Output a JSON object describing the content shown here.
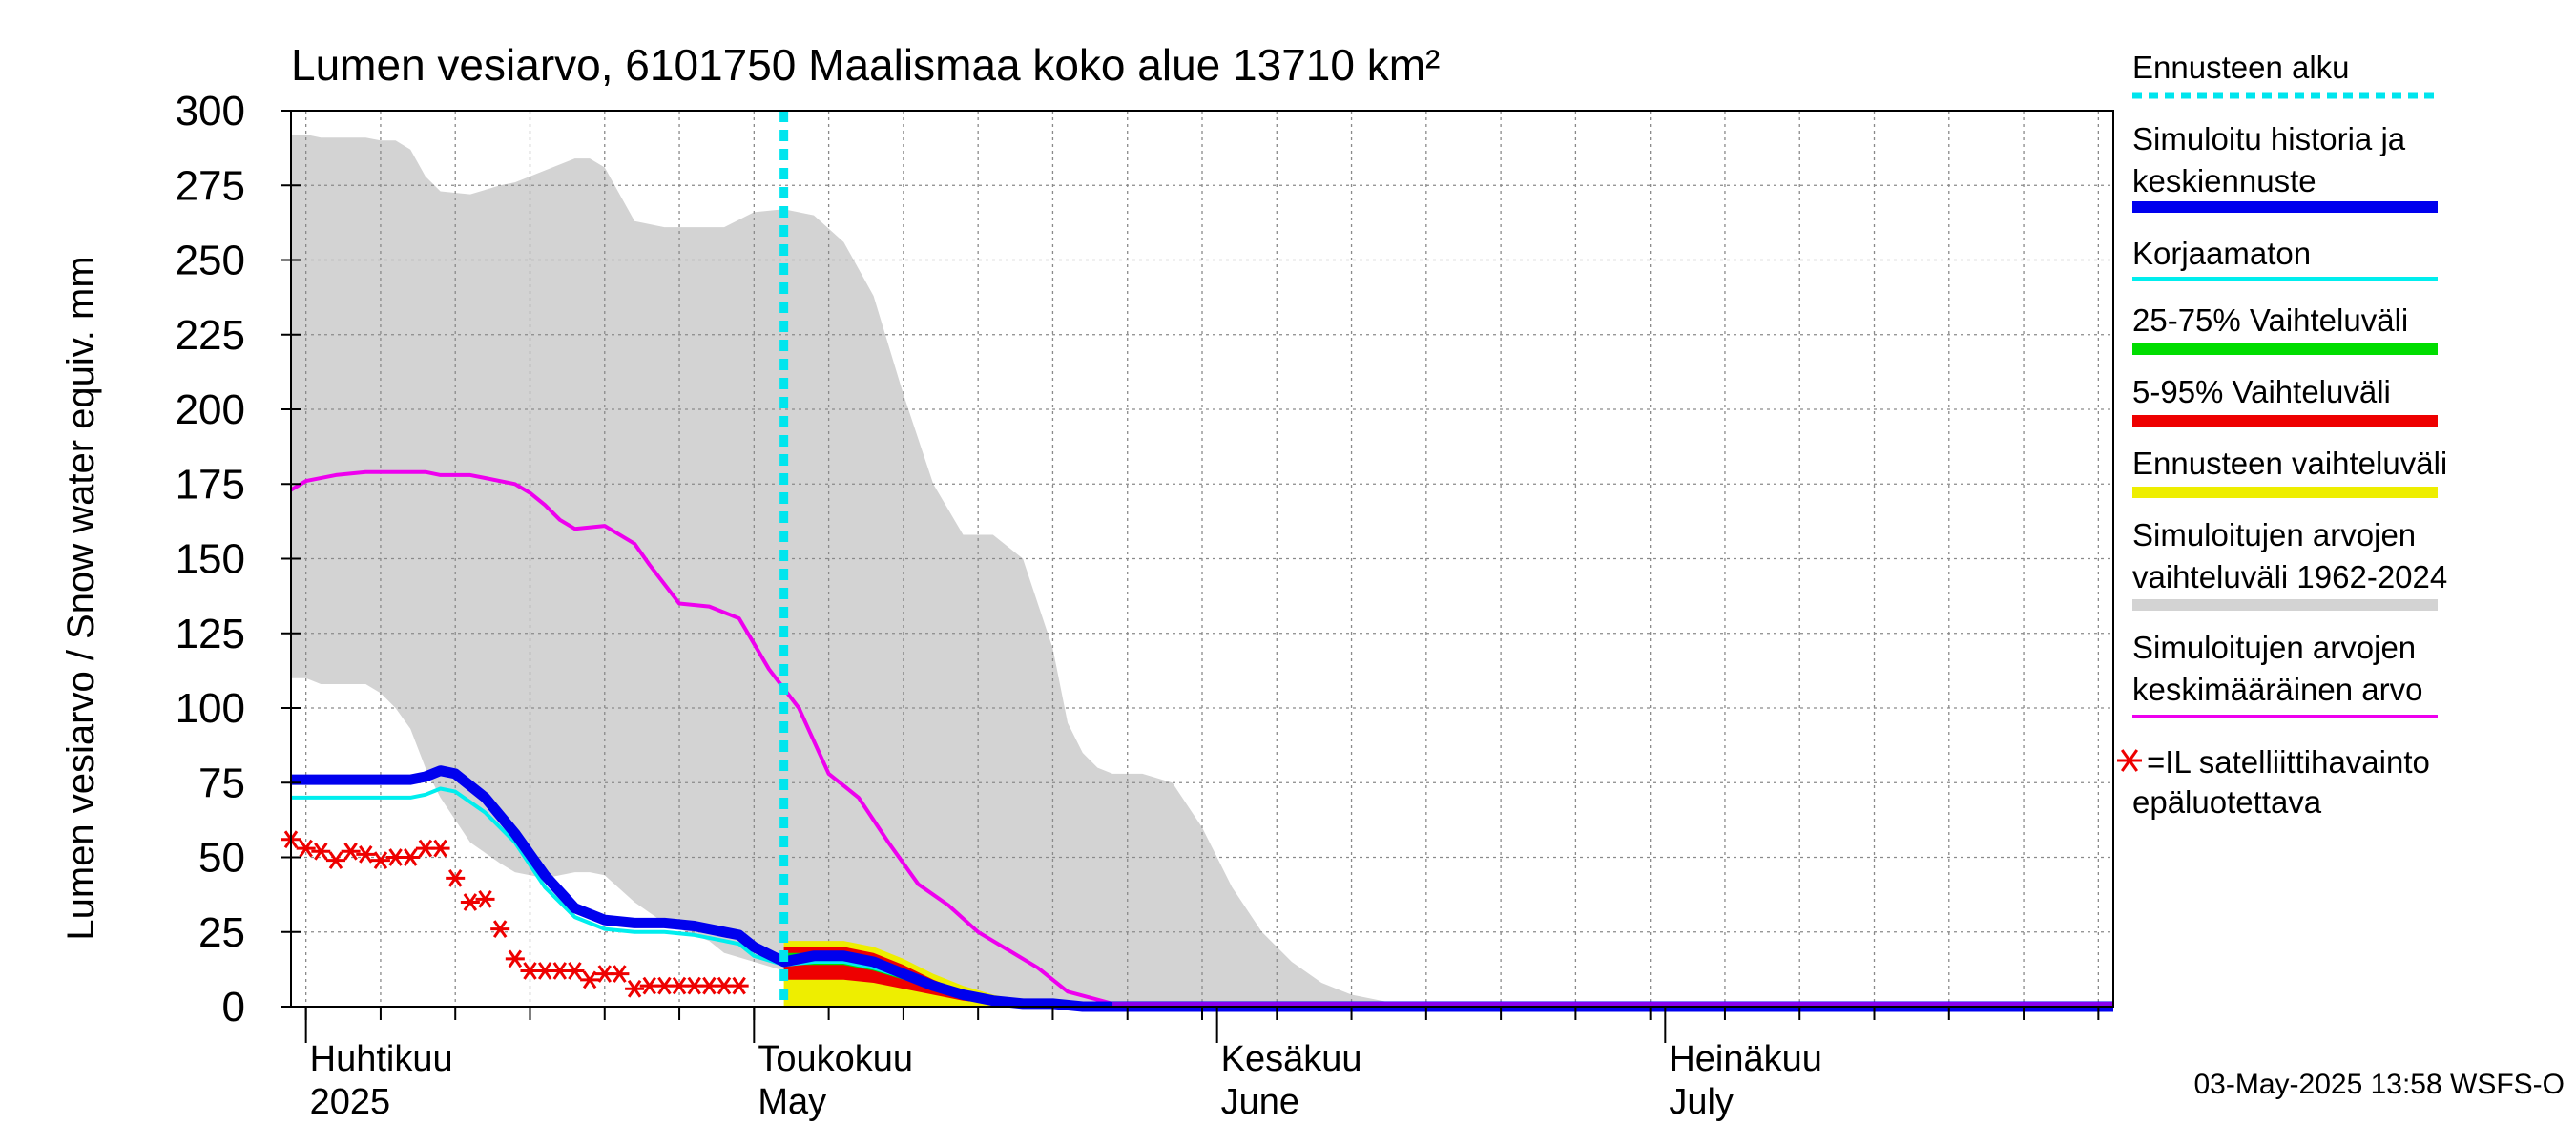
{
  "chart_data": {
    "type": "area",
    "title": "Lumen vesiarvo, 6101750 Maalismaa koko alue 13710 km²",
    "ylabel": "Lumen vesiarvo / Snow water equiv.    mm",
    "ylim": [
      0,
      300
    ],
    "yticks": [
      0,
      25,
      50,
      75,
      100,
      125,
      150,
      175,
      200,
      225,
      250,
      275,
      300
    ],
    "xlim": [
      "2025-03-31",
      "2025-07-31"
    ],
    "grid": true,
    "legend_position": "right",
    "month_labels": [
      {
        "fi": "Huhtikuu",
        "en": "2025",
        "date": "2025-04-01"
      },
      {
        "fi": "Toukokuu",
        "en": "May",
        "date": "2025-05-01"
      },
      {
        "fi": "Kesäkuu",
        "en": "June",
        "date": "2025-06-01"
      },
      {
        "fi": "Heinäkuu",
        "en": "July",
        "date": "2025-07-01"
      }
    ],
    "forecast_start": "2025-05-03",
    "legend": [
      {
        "label": "Ennusteen alku",
        "color": "#00e5ee",
        "style": "dotted"
      },
      {
        "label": "Simuloitu historia ja keskiennuste",
        "color": "#0000ee",
        "style": "thick"
      },
      {
        "label": "Korjaamaton",
        "color": "#00eeee",
        "style": "line"
      },
      {
        "label": "25-75% Vaihteluväli",
        "color": "#00dd00",
        "style": "band"
      },
      {
        "label": "5-95% Vaihteluväli",
        "color": "#ee0000",
        "style": "band"
      },
      {
        "label": "Ennusteen vaihteluväli",
        "color": "#eeee00",
        "style": "band"
      },
      {
        "label": "Simuloitujen arvojen vaihteluväli 1962-2024",
        "color": "#d3d3d3",
        "style": "band"
      },
      {
        "label": "Simuloitujen arvojen keskimääräinen arvo",
        "color": "#ee00ee",
        "style": "line"
      },
      {
        "label": "=IL satelliittihavainto epäluotettava",
        "color": "#ee0000",
        "style": "star"
      }
    ],
    "hist_range": {
      "x": [
        "2025-03-31",
        "2025-04-01",
        "2025-04-02",
        "2025-04-05",
        "2025-04-06",
        "2025-04-07",
        "2025-04-08",
        "2025-04-09",
        "2025-04-10",
        "2025-04-12",
        "2025-04-14",
        "2025-04-15",
        "2025-04-17",
        "2025-04-19",
        "2025-04-20",
        "2025-04-21",
        "2025-04-23",
        "2025-04-25",
        "2025-04-28",
        "2025-04-29",
        "2025-05-01",
        "2025-05-03",
        "2025-05-05",
        "2025-05-07",
        "2025-05-09",
        "2025-05-11",
        "2025-05-13",
        "2025-05-15",
        "2025-05-17",
        "2025-05-19",
        "2025-05-21",
        "2025-05-22",
        "2025-05-23",
        "2025-05-24",
        "2025-05-25",
        "2025-05-27",
        "2025-05-29",
        "2025-05-31",
        "2025-06-02",
        "2025-06-04",
        "2025-06-06",
        "2025-06-08",
        "2025-06-10",
        "2025-06-12",
        "2025-06-13",
        "2025-07-31"
      ],
      "upper": [
        292,
        292,
        291,
        291,
        290,
        290,
        287,
        278,
        273,
        272,
        275,
        276,
        280,
        284,
        284,
        281,
        263,
        261,
        261,
        261,
        266,
        267,
        265,
        256,
        238,
        205,
        175,
        158,
        158,
        150,
        120,
        95,
        85,
        80,
        78,
        78,
        75,
        60,
        40,
        25,
        15,
        8,
        4,
        2,
        1,
        1
      ],
      "lower": [
        110,
        110,
        108,
        108,
        105,
        100,
        93,
        80,
        70,
        55,
        48,
        45,
        43,
        45,
        45,
        44,
        35,
        28,
        22,
        18,
        15,
        12,
        10,
        8,
        6,
        4,
        3,
        2,
        1,
        0,
        0,
        0,
        0,
        0,
        0,
        0,
        0,
        0,
        0,
        0,
        0,
        0,
        0,
        0,
        0,
        0
      ]
    },
    "series": [
      {
        "name": "Simuloitujen arvojen keskimääräinen arvo",
        "color": "#ee00ee",
        "x": [
          "2025-03-31",
          "2025-04-01",
          "2025-04-03",
          "2025-04-05",
          "2025-04-07",
          "2025-04-09",
          "2025-04-10",
          "2025-04-12",
          "2025-04-13",
          "2025-04-15",
          "2025-04-16",
          "2025-04-17",
          "2025-04-18",
          "2025-04-19",
          "2025-04-21",
          "2025-04-23",
          "2025-04-24",
          "2025-04-26",
          "2025-04-28",
          "2025-04-30",
          "2025-05-02",
          "2025-05-04",
          "2025-05-06",
          "2025-05-08",
          "2025-05-10",
          "2025-05-12",
          "2025-05-14",
          "2025-05-16",
          "2025-05-18",
          "2025-05-20",
          "2025-05-22",
          "2025-05-25",
          "2025-07-31"
        ],
        "y": [
          173,
          176,
          178,
          179,
          179,
          179,
          178,
          178,
          177,
          175,
          172,
          168,
          163,
          160,
          161,
          155,
          148,
          135,
          134,
          130,
          113,
          100,
          78,
          70,
          55,
          41,
          34,
          25,
          19,
          13,
          5,
          1,
          1
        ]
      },
      {
        "name": "Korjaamaton",
        "color": "#00eeee",
        "x": [
          "2025-03-31",
          "2025-04-02",
          "2025-04-05",
          "2025-04-08",
          "2025-04-09",
          "2025-04-10",
          "2025-04-11",
          "2025-04-13",
          "2025-04-15",
          "2025-04-17",
          "2025-04-19",
          "2025-04-21",
          "2025-04-23",
          "2025-04-25",
          "2025-04-27",
          "2025-04-29",
          "2025-04-30",
          "2025-05-01",
          "2025-05-03",
          "2025-05-05",
          "2025-05-07",
          "2025-05-09",
          "2025-05-11",
          "2025-05-13",
          "2025-05-15",
          "2025-05-17",
          "2025-05-19",
          "2025-05-21",
          "2025-05-23",
          "2025-05-25",
          "2025-07-31"
        ],
        "y": [
          70,
          70,
          70,
          70,
          71,
          73,
          72,
          65,
          55,
          40,
          30,
          26,
          25,
          25,
          24,
          22,
          21,
          17,
          14,
          15,
          15,
          13,
          10,
          6,
          3,
          2,
          1,
          1,
          0,
          0,
          0
        ]
      },
      {
        "name": "Simuloitu historia ja keskiennuste",
        "color": "#0000ee",
        "x": [
          "2025-03-31",
          "2025-04-02",
          "2025-04-05",
          "2025-04-08",
          "2025-04-09",
          "2025-04-10",
          "2025-04-11",
          "2025-04-13",
          "2025-04-15",
          "2025-04-17",
          "2025-04-19",
          "2025-04-21",
          "2025-04-23",
          "2025-04-25",
          "2025-04-27",
          "2025-04-29",
          "2025-04-30",
          "2025-05-01",
          "2025-05-03",
          "2025-05-05",
          "2025-05-07",
          "2025-05-09",
          "2025-05-11",
          "2025-05-13",
          "2025-05-15",
          "2025-05-17",
          "2025-05-19",
          "2025-05-21",
          "2025-05-23",
          "2025-05-25",
          "2025-07-31"
        ],
        "y": [
          76,
          76,
          76,
          76,
          77,
          79,
          78,
          70,
          58,
          44,
          33,
          29,
          28,
          28,
          27,
          25,
          24,
          20,
          15,
          17,
          17,
          15,
          11,
          7,
          4,
          2,
          1,
          1,
          0,
          0,
          0
        ]
      }
    ],
    "forecast_bands": {
      "x": [
        "2025-05-03",
        "2025-05-05",
        "2025-05-07",
        "2025-05-09",
        "2025-05-11",
        "2025-05-13",
        "2025-05-15",
        "2025-05-17",
        "2025-05-19",
        "2025-05-21",
        "2025-05-23",
        "2025-05-25",
        "2025-07-31"
      ],
      "yellow_upper": [
        22,
        22,
        22,
        20,
        16,
        11,
        7,
        4,
        2,
        1,
        0,
        0,
        0
      ],
      "red_upper": [
        20,
        20,
        20,
        18,
        14,
        9,
        5,
        3,
        1,
        0,
        0,
        0,
        0
      ],
      "green_upper": [
        18,
        18,
        18,
        16,
        12,
        8,
        4,
        2,
        1,
        0,
        0,
        0,
        0
      ],
      "green_lower": [
        14,
        14,
        14,
        12,
        9,
        6,
        3,
        1,
        0,
        0,
        0,
        0,
        0
      ],
      "red_lower": [
        9,
        9,
        9,
        8,
        6,
        4,
        2,
        1,
        0,
        0,
        0,
        0,
        0
      ]
    },
    "satellite_observations": {
      "name": "=IL satelliittihavainto epäluotettava",
      "x": [
        "2025-03-31",
        "2025-04-01",
        "2025-04-02",
        "2025-04-03",
        "2025-04-04",
        "2025-04-05",
        "2025-04-06",
        "2025-04-07",
        "2025-04-08",
        "2025-04-09",
        "2025-04-10",
        "2025-04-11",
        "2025-04-12",
        "2025-04-13",
        "2025-04-14",
        "2025-04-15",
        "2025-04-16",
        "2025-04-17",
        "2025-04-18",
        "2025-04-19",
        "2025-04-20",
        "2025-04-21",
        "2025-04-22",
        "2025-04-23",
        "2025-04-24",
        "2025-04-25",
        "2025-04-26",
        "2025-04-27",
        "2025-04-28",
        "2025-04-29",
        "2025-04-30"
      ],
      "y": [
        56,
        53,
        52,
        49,
        52,
        51,
        49,
        50,
        50,
        53,
        53,
        43,
        35,
        36,
        26,
        16,
        12,
        12,
        12,
        12,
        9,
        11,
        11,
        6,
        7,
        7,
        7,
        7,
        7,
        7,
        7
      ]
    },
    "timestamp": "03-May-2025 13:58 WSFS-O"
  }
}
